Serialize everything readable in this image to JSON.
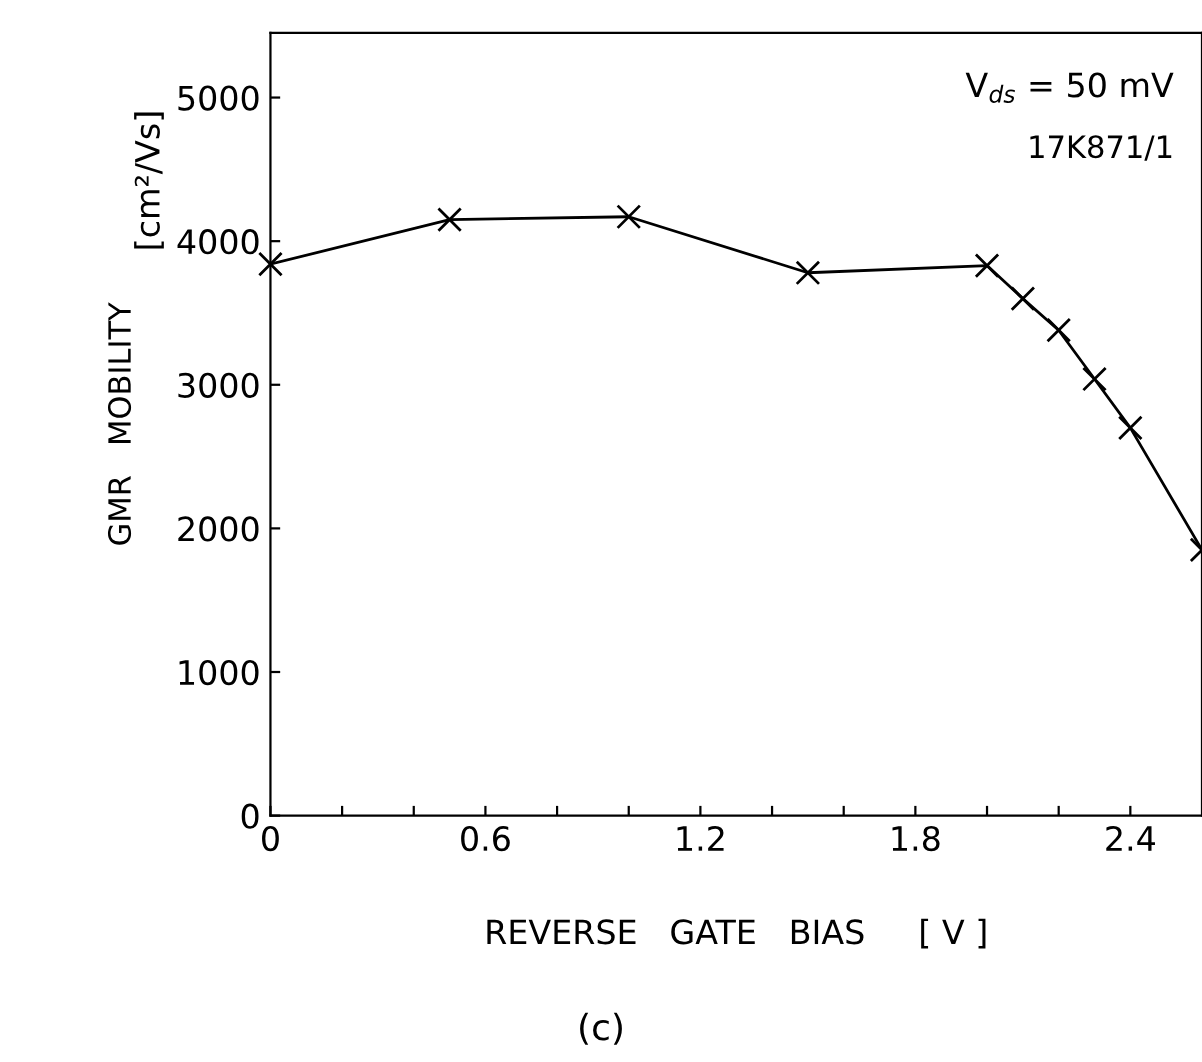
{
  "chart_data": {
    "type": "line",
    "xlabel": "REVERSE   GATE   BIAS     [ V ]",
    "ylabel": "GMR   MOBILITY",
    "annotations": [
      "[cm²/Vs]",
      "V$_{ds}$ = 50 mV",
      "17K871/1",
      "(c)"
    ],
    "x": [
      0,
      0.5,
      1.0,
      1.5,
      2.0,
      2.1,
      2.2,
      2.3,
      2.4,
      2.6
    ],
    "series": [
      {
        "color": "#000000",
        "values": [
          3840,
          4150,
          4170,
          3780,
          3830,
          3600,
          3380,
          3040,
          2700,
          1850
        ]
      }
    ],
    "marker": "cross",
    "line_style": "solid",
    "xlim": [
      0,
      2.6
    ],
    "ylim": [
      0,
      5450
    ],
    "xticks": [
      0,
      {
        "value": 0.2,
        "label": null
      },
      {
        "value": 0.4,
        "label": null
      },
      0.6,
      {
        "value": 0.8,
        "label": null
      },
      {
        "value": 1.0,
        "label": null
      },
      1.2,
      {
        "value": 1.4,
        "label": null
      },
      {
        "value": 1.6,
        "label": null
      },
      1.8,
      {
        "value": 2.0,
        "label": null
      },
      {
        "value": 2.2,
        "label": null
      },
      2.4
    ],
    "yticks": [
      0,
      1000,
      2000,
      3000,
      4000,
      5000
    ],
    "grid": false,
    "legend": false
  }
}
